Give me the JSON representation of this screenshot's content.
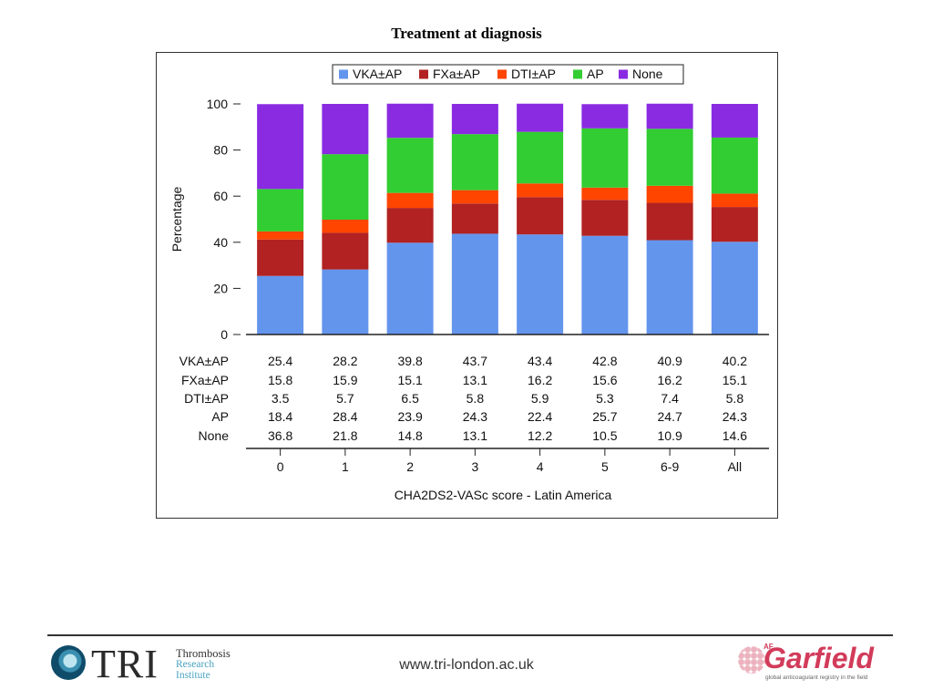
{
  "page": {
    "title": "Treatment at diagnosis",
    "footer_url": "www.tri-london.ac.uk"
  },
  "logos": {
    "tri": {
      "mark": "TRI",
      "line1": "Thrombosis",
      "line2": "Research",
      "line3": "Institute"
    },
    "garfield": {
      "prefix": "AF",
      "name": "Garfield",
      "tagline": "global anticoagulant registry in the field"
    }
  },
  "chart_data": {
    "type": "bar",
    "stacked": true,
    "title": "",
    "xlabel": "CHA2DS2-VASc score - Latin America",
    "ylabel": "Percentage",
    "ylim": [
      0,
      100
    ],
    "yticks": [
      0,
      20,
      40,
      60,
      80,
      100
    ],
    "grid": false,
    "legend_position": "top",
    "categories": [
      "0",
      "1",
      "2",
      "3",
      "4",
      "5",
      "6-9",
      "All"
    ],
    "series": [
      {
        "name": "VKA±AP",
        "color": "#6495ed",
        "values": [
          25.4,
          28.2,
          39.8,
          43.7,
          43.4,
          42.8,
          40.9,
          40.2
        ]
      },
      {
        "name": "FXa±AP",
        "color": "#b22222",
        "values": [
          15.8,
          15.9,
          15.1,
          13.1,
          16.2,
          15.6,
          16.2,
          15.1
        ]
      },
      {
        "name": "DTI±AP",
        "color": "#ff4500",
        "values": [
          3.5,
          5.7,
          6.5,
          5.8,
          5.9,
          5.3,
          7.4,
          5.8
        ]
      },
      {
        "name": "AP",
        "color": "#32cd32",
        "values": [
          18.4,
          28.4,
          23.9,
          24.3,
          22.4,
          25.7,
          24.7,
          24.3
        ]
      },
      {
        "name": "None",
        "color": "#8a2be2",
        "values": [
          36.8,
          21.8,
          14.8,
          13.1,
          12.2,
          10.5,
          10.9,
          14.6
        ]
      }
    ]
  }
}
